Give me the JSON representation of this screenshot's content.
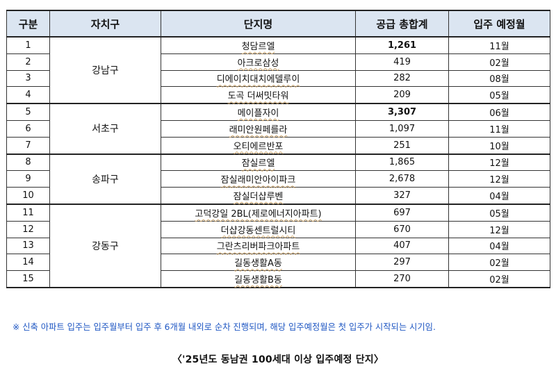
{
  "headers": [
    "구분",
    "자치구",
    "단지명",
    "공급 총합계",
    "입주 예정월"
  ],
  "groups": [
    {
      "district": "강남구",
      "rows": [
        {
          "no": "1",
          "name": "청담르엘",
          "supply": "1,261",
          "month": "11월",
          "bold": true
        },
        {
          "no": "2",
          "name": "아크로삼성",
          "supply": "419",
          "month": "02월",
          "bold": false
        },
        {
          "no": "3",
          "name": "디에이치대치에델루이",
          "supply": "282",
          "month": "08월",
          "bold": false
        },
        {
          "no": "4",
          "name": "도곡 더써밋타워",
          "supply": "209",
          "month": "05월",
          "bold": false
        }
      ]
    },
    {
      "district": "서초구",
      "rows": [
        {
          "no": "5",
          "name": "메이플자이",
          "supply": "3,307",
          "month": "06월",
          "bold": true
        },
        {
          "no": "6",
          "name": "래미안원페를라",
          "supply": "1,097",
          "month": "11월",
          "bold": false
        },
        {
          "no": "7",
          "name": "오티에르반포",
          "supply": "251",
          "month": "10월",
          "bold": false
        }
      ]
    },
    {
      "district": "송파구",
      "rows": [
        {
          "no": "8",
          "name": "잠실르엘",
          "supply": "1,865",
          "month": "12월",
          "bold": false
        },
        {
          "no": "9",
          "name": "잠실래미안아이파크",
          "supply": "2,678",
          "month": "12월",
          "bold": false
        },
        {
          "no": "10",
          "name": "잠실더샵루벤",
          "supply": "327",
          "month": "04월",
          "bold": false
        }
      ]
    },
    {
      "district": "강동구",
      "rows": [
        {
          "no": "11",
          "name": "고덕강일 2BL(제로에너지아파트)",
          "supply": "697",
          "month": "05월",
          "bold": false
        },
        {
          "no": "12",
          "name": "더샵강동센트럴시티",
          "supply": "670",
          "month": "12월",
          "bold": false
        },
        {
          "no": "13",
          "name": "그란츠리버파크아파트",
          "supply": "407",
          "month": "04월",
          "bold": false
        },
        {
          "no": "14",
          "name": "길동생활A동",
          "supply": "297",
          "month": "02월",
          "bold": false
        },
        {
          "no": "15",
          "name": "길동생활B동",
          "supply": "270",
          "month": "02월",
          "bold": false
        }
      ]
    }
  ],
  "note": "※ 신축 아파트 입주는 입주월부터 입주 후 6개월 내외로 순차 진행되며, 해당 입주예정월은 첫 입주가 시작되는 시기임.",
  "caption": "〈'25년도 동남권 100세대 이상 입주예정 단지〉",
  "colors": {
    "header_bg": "#dbe5f1",
    "note_text": "#1f57c3",
    "border": "#333333"
  }
}
